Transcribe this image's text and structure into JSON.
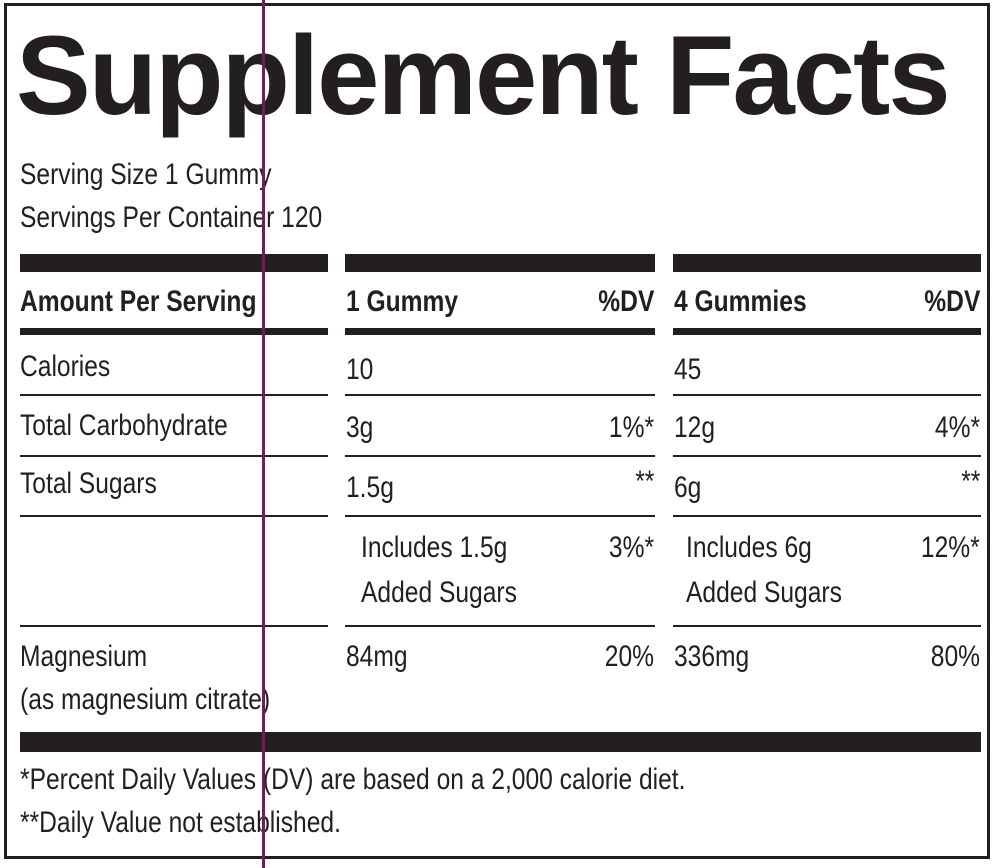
{
  "label": {
    "title": "Supplement Facts",
    "serving_size": "Serving Size 1 Gummy",
    "servings_per_container": "Servings Per Container 120",
    "headers": {
      "amount": "Amount Per Serving",
      "col1": "1 Gummy",
      "dv1": "%DV",
      "col2": "4 Gummies",
      "dv2": "%DV"
    },
    "rows": [
      {
        "name": "Calories",
        "v1": "10",
        "dv1": "",
        "v2": "45",
        "dv2": ""
      },
      {
        "name": "Total Carbohydrate",
        "v1": "3g",
        "dv1": "1%*",
        "v2": "12g",
        "dv2": "4%*"
      },
      {
        "name": "Total Sugars",
        "v1": "1.5g",
        "dv1": "**",
        "v2": "6g",
        "dv2": "**"
      },
      {
        "name": "",
        "v1_line1": "Includes 1.5g",
        "v1_line2": "Added Sugars",
        "dv1": "3%*",
        "v2_line1": "Includes 6g",
        "v2_line2": "Added Sugars",
        "dv2": "12%*"
      },
      {
        "name_line1": "Magnesium",
        "name_line2": "(as magnesium citrate)",
        "v1": "84mg",
        "dv1": "20%",
        "v2": "336mg",
        "dv2": "80%"
      }
    ],
    "footnotes": [
      "*Percent Daily Values (DV) are based on a 2,000 calorie diet.",
      "**Daily Value not established."
    ]
  },
  "colors": {
    "ink": "#231f20",
    "guide_line": "#7a1a4e"
  }
}
